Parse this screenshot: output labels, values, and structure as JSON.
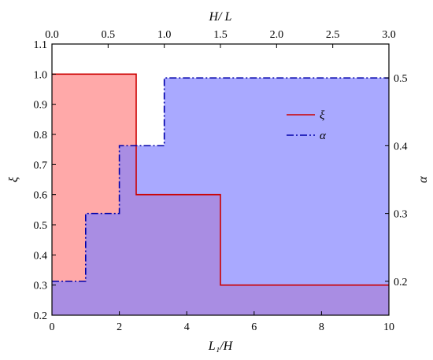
{
  "chart_data": {
    "type": "area",
    "title": "",
    "xlabel": "L₁/H",
    "x2label": "H/ L",
    "ylabel": "ξ",
    "y2label": "α",
    "xlim": [
      0,
      10
    ],
    "x2lim": [
      0,
      3
    ],
    "ylim": [
      0.2,
      1.1
    ],
    "y2lim": [
      0.15,
      0.55
    ],
    "xticks": [
      0,
      2,
      4,
      6,
      8,
      10
    ],
    "x2ticks": [
      "0.0",
      "0.5",
      "1.0",
      "1.5",
      "2.0",
      "2.5",
      "3.0"
    ],
    "yticks": [
      "0.2",
      "0.3",
      "0.4",
      "0.5",
      "0.6",
      "0.7",
      "0.8",
      "0.9",
      "1.0",
      "1.1"
    ],
    "y2ticks": [
      "0.2",
      "0.3",
      "0.4",
      "0.5"
    ],
    "legend_position": "upper-right-inside",
    "series": [
      {
        "name": "ξ",
        "axis": "left-bottom",
        "style": "solid",
        "color": "#cc0000",
        "fill": "#ff8080",
        "fill_opacity": 0.68,
        "x": [
          0,
          2.5,
          2.5,
          5,
          5,
          10
        ],
        "y": [
          1.0,
          1.0,
          0.6,
          0.6,
          0.3,
          0.3
        ]
      },
      {
        "name": "α",
        "axis": "right-top",
        "style": "dashdot",
        "color": "#0000aa",
        "fill": "#8080ff",
        "fill_opacity": 0.68,
        "x": [
          0,
          0.3,
          0.3,
          0.6,
          0.6,
          1.0,
          1.0,
          3.0
        ],
        "y": [
          0.2,
          0.2,
          0.3,
          0.3,
          0.4,
          0.4,
          0.5,
          0.5
        ]
      }
    ]
  }
}
